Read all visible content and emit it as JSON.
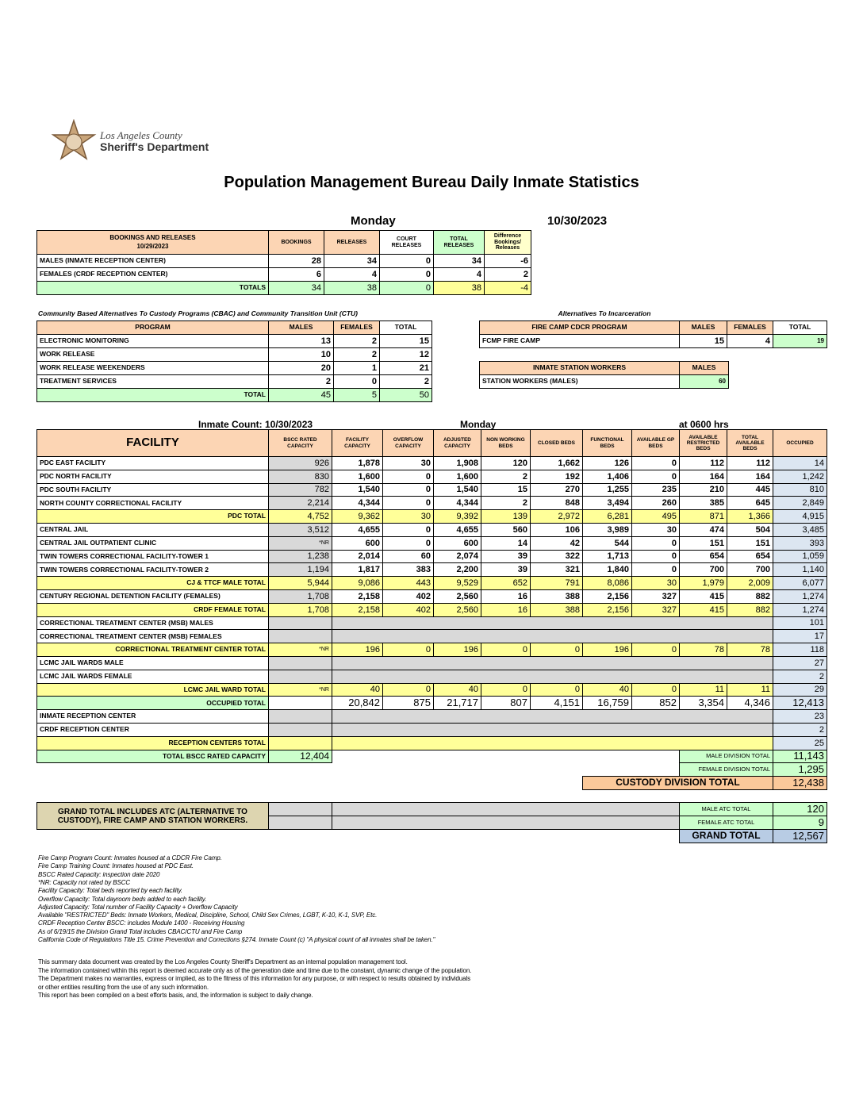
{
  "header": {
    "logo_line1": "Los Angeles County",
    "logo_line2": "Sheriff's Department",
    "title": "Population Management Bureau Daily Inmate Statistics",
    "day": "Monday",
    "date": "10/30/2023"
  },
  "bookings": {
    "title": "BOOKINGS AND RELEASES",
    "date": "10/29/2023",
    "columns": [
      "BOOKINGS",
      "RELEASES",
      "COURT RELEASES",
      "TOTAL RELEASES",
      "Difference Bookings/ Releases"
    ],
    "rows": [
      [
        "MALES (INMATE RECEPTION CENTER)",
        "28",
        "34",
        "0",
        "34",
        "-6"
      ],
      [
        "FEMALES (CRDF RECEPTION CENTER)",
        "6",
        "4",
        "0",
        "4",
        "2"
      ],
      [
        "TOTALS",
        "34",
        "38",
        "0",
        "38",
        "-4"
      ]
    ]
  },
  "cbac": {
    "caption": "Community Based Alternatives To Custody Programs (CBAC) and Community Transition Unit (CTU)",
    "columns": [
      "PROGRAM",
      "MALES",
      "FEMALES",
      "TOTAL"
    ],
    "rows": [
      [
        "ELECTRONIC MONITORING",
        "13",
        "2",
        "15"
      ],
      [
        "WORK RELEASE",
        "10",
        "2",
        "12"
      ],
      [
        "WORK RELEASE WEEKENDERS",
        "20",
        "1",
        "21"
      ],
      [
        "TREATMENT SERVICES",
        "2",
        "0",
        "2"
      ],
      [
        "TOTAL",
        "45",
        "5",
        "50"
      ]
    ]
  },
  "atc": {
    "caption": "Alternatives To Incarceration",
    "fire_camp": {
      "columns": [
        "FIRE CAMP CDCR PROGRAM",
        "MALES",
        "FEMALES",
        "TOTAL"
      ],
      "rows": [
        [
          "FCMP FIRE CAMP",
          "15",
          "4",
          "19"
        ]
      ]
    },
    "station_workers": {
      "columns": [
        "INMATE STATION WORKERS",
        "MALES"
      ],
      "rows": [
        [
          "STATION WORKERS (MALES)",
          "60"
        ]
      ]
    }
  },
  "count_header": {
    "label": "Inmate Count: 10/30/2023",
    "day": "Monday",
    "time": "at 0600 hrs"
  },
  "facility": {
    "columns": [
      "FACILITY",
      "BSCC RATED CAPACITY",
      "FACILITY CAPACITY",
      "OVERFLOW CAPACITY",
      "ADJUSTED CAPACITY",
      "NON WORKING BEDS",
      "CLOSED BEDS",
      "FUNCTIONAL BEDS",
      "AVAILABLE GP BEDS",
      "AVAILABLE RESTRICTED BEDS",
      "TOTAL AVAILABLE BEDS",
      "OCCUPIED"
    ],
    "rows": [
      [
        "PDC EAST FACILITY",
        "926",
        "1,878",
        "30",
        "1,908",
        "120",
        "1,662",
        "126",
        "0",
        "112",
        "112",
        "14"
      ],
      [
        "PDC NORTH FACILITY",
        "830",
        "1,600",
        "0",
        "1,600",
        "2",
        "192",
        "1,406",
        "0",
        "164",
        "164",
        "1,242"
      ],
      [
        "PDC SOUTH FACILITY",
        "782",
        "1,540",
        "0",
        "1,540",
        "15",
        "270",
        "1,255",
        "235",
        "210",
        "445",
        "810"
      ],
      [
        "NORTH COUNTY CORRECTIONAL FACILITY",
        "2,214",
        "4,344",
        "0",
        "4,344",
        "2",
        "848",
        "3,494",
        "260",
        "385",
        "645",
        "2,849"
      ],
      [
        "PDC TOTAL",
        "4,752",
        "9,362",
        "30",
        "9,392",
        "139",
        "2,972",
        "6,281",
        "495",
        "871",
        "1,366",
        "4,915"
      ],
      [
        "CENTRAL JAIL",
        "3,512",
        "4,655",
        "0",
        "4,655",
        "560",
        "106",
        "3,989",
        "30",
        "474",
        "504",
        "3,485"
      ],
      [
        "CENTRAL JAIL OUTPATIENT CLINIC",
        "*NR",
        "600",
        "0",
        "600",
        "14",
        "42",
        "544",
        "0",
        "151",
        "151",
        "393"
      ],
      [
        "TWIN TOWERS CORRECTIONAL FACILITY-TOWER 1",
        "1,238",
        "2,014",
        "60",
        "2,074",
        "39",
        "322",
        "1,713",
        "0",
        "654",
        "654",
        "1,059"
      ],
      [
        "TWIN TOWERS CORRECTIONAL FACILITY-TOWER 2",
        "1,194",
        "1,817",
        "383",
        "2,200",
        "39",
        "321",
        "1,840",
        "0",
        "700",
        "700",
        "1,140"
      ],
      [
        "CJ & TTCF MALE TOTAL",
        "5,944",
        "9,086",
        "443",
        "9,529",
        "652",
        "791",
        "8,086",
        "30",
        "1,979",
        "2,009",
        "6,077"
      ],
      [
        "CENTURY REGIONAL DETENTION FACILITY (FEMALES)",
        "1,708",
        "2,158",
        "402",
        "2,560",
        "16",
        "388",
        "2,156",
        "327",
        "415",
        "882",
        "1,274"
      ],
      [
        "CRDF FEMALE TOTAL",
        "1,708",
        "2,158",
        "402",
        "2,560",
        "16",
        "388",
        "2,156",
        "327",
        "415",
        "882",
        "1,274"
      ],
      [
        "CORRECTIONAL TREATMENT CENTER (MSB) MALES",
        null,
        null,
        null,
        null,
        null,
        null,
        null,
        null,
        null,
        null,
        "101"
      ],
      [
        "CORRECTIONAL TREATMENT CENTER (MSB) FEMALES",
        null,
        null,
        null,
        null,
        null,
        null,
        null,
        null,
        null,
        null,
        "17"
      ],
      [
        "CORRECTIONAL TREATMENT CENTER TOTAL",
        "*NR",
        "196",
        "0",
        "196",
        "0",
        "0",
        "196",
        "0",
        "78",
        "78",
        "118"
      ],
      [
        "LCMC JAIL WARDS MALE",
        null,
        null,
        null,
        null,
        null,
        null,
        null,
        null,
        null,
        null,
        "27"
      ],
      [
        "LCMC JAIL WARDS FEMALE",
        null,
        null,
        null,
        null,
        null,
        null,
        null,
        null,
        null,
        null,
        "2"
      ],
      [
        "LCMC JAIL WARD TOTAL",
        "*NR",
        "40",
        "0",
        "40",
        "0",
        "0",
        "40",
        "0",
        "11",
        "11",
        "29"
      ],
      [
        "OCCUPIED TOTAL",
        null,
        "20,842",
        "875",
        "21,717",
        "807",
        "4,151",
        "16,759",
        "852",
        "3,354",
        "4,346",
        "12,413"
      ],
      [
        "INMATE RECEPTION CENTER",
        null,
        null,
        null,
        null,
        null,
        null,
        null,
        null,
        null,
        null,
        "23"
      ],
      [
        "CRDF RECEPTION CENTER",
        null,
        null,
        null,
        null,
        null,
        null,
        null,
        null,
        null,
        null,
        "2"
      ],
      [
        "RECEPTION CENTERS TOTAL",
        null,
        null,
        null,
        null,
        null,
        null,
        null,
        null,
        null,
        null,
        "25"
      ]
    ]
  },
  "totals": {
    "bscc": [
      "TOTAL BSCC RATED CAPACITY",
      "12,404"
    ],
    "male_division": [
      "MALE DIVISION TOTAL",
      "11,143"
    ],
    "female_division": [
      "FEMALE DIVISION TOTAL",
      "1,295"
    ],
    "custody_division": [
      "CUSTODY DIVISION TOTAL",
      "12,438"
    ]
  },
  "grand_total": {
    "note": "GRAND TOTAL INCLUDES ATC (ALTERNATIVE TO CUSTODY), FIRE CAMP AND STATION WORKERS.",
    "male_atc": [
      "MALE ATC TOTAL",
      "120"
    ],
    "female_atc": [
      "FEMALE ATC TOTAL",
      "9"
    ],
    "grand": [
      "GRAND TOTAL",
      "12,567"
    ]
  },
  "notes": [
    "Fire Camp Program Count: Inmates housed at a CDCR Fire Camp.",
    "Fire Camp Training Count: Inmates housed at PDC East.",
    "BSCC Rated Capacity: inspection date 2020",
    "*NR: Capacity not rated by BSCC",
    "Facility Capacity: Total beds reported by each facility.",
    "Overflow Capacity: Total dayroom beds added to each facility.",
    "Adjusted Capacity: Total number of Facility Capacity + Overflow Capacity",
    "Available \"RESTRICTED\" Beds: Inmate Workers, Medical, Discipline, School, Child Sex Crimes, LGBT, K-10, K-1, SVP, Etc.",
    "CRDF Reception Center BSCC: includes Module 1400 - Receiving Housing",
    "As of 6/19/15 the Division Grand Total includes CBAC/CTU and Fire Camp",
    "California Code of Regulations Title 15. Crime Prevention and Corrections §274. Inmate Count (c) \"A physical count of all inmates shall be taken.\""
  ],
  "disclaimer": [
    "This summary data document was created by the Los Angeles County Sheriff's Department as an internal population management tool.",
    "The information contained within this report is deemed accurate only as of the generation date and time due to the constant, dynamic change of the population.",
    "The Department makes no warranties, express or implied, as to the fitness of this information for any purpose, or with respect to results obtained by individuals",
    "or other entities resulting from the use of any such information.",
    "This report has been compiled on a best efforts basis, and, the information is subject to daily change."
  ]
}
